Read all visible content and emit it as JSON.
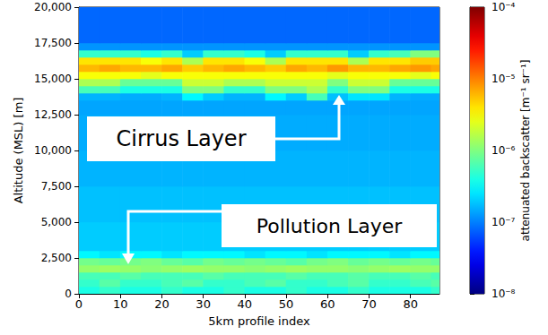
{
  "chart_data": {
    "type": "heatmap",
    "xlabel": "5km profile index",
    "ylabel": "Altitude (MSL) [m]",
    "xlim": [
      0,
      87
    ],
    "xticks": [
      0,
      10,
      20,
      30,
      40,
      50,
      60,
      70,
      80
    ],
    "ylim": [
      0,
      20000
    ],
    "yticks": [
      0,
      2500,
      5000,
      7500,
      10000,
      12500,
      15000,
      17500,
      20000
    ],
    "grid": false,
    "annotations": [
      "Cirrus Layer",
      "Pollution Layer"
    ],
    "x_bins": [
      0,
      5,
      10,
      15,
      20,
      25,
      30,
      35,
      40,
      45,
      50,
      55,
      60,
      65,
      70,
      75,
      80,
      85,
      87
    ],
    "y_bins": [
      0,
      500,
      1000,
      1500,
      2000,
      2500,
      3000,
      5000,
      7500,
      10000,
      12500,
      13500,
      14000,
      14500,
      15000,
      15500,
      16000,
      16500,
      17000,
      17500,
      20000
    ],
    "cells": [
      [
        4e-07,
        5e-07,
        4e-07,
        4e-07,
        5e-07,
        4e-07,
        4e-07,
        5e-07,
        4e-07,
        4e-07,
        5e-07,
        4e-07,
        4e-07,
        5e-07,
        4e-07,
        4e-07,
        4e-07,
        5e-07
      ],
      [
        5e-07,
        7e-07,
        5e-07,
        5e-07,
        6e-07,
        7e-07,
        5e-07,
        5e-07,
        6e-07,
        7e-07,
        5e-07,
        5e-07,
        6e-07,
        7e-07,
        5e-07,
        5e-07,
        6e-07,
        7e-07
      ],
      [
        6e-07,
        6e-07,
        7e-07,
        6e-07,
        6e-07,
        6e-07,
        7e-07,
        6e-07,
        6e-07,
        6e-07,
        7e-07,
        6e-07,
        6e-07,
        7e-07,
        6e-07,
        6e-07,
        7e-07,
        6e-07
      ],
      [
        1.2e-06,
        1.3e-06,
        1.2e-06,
        1.1e-06,
        1.2e-06,
        1.3e-06,
        1.2e-06,
        1.2e-06,
        1.1e-06,
        1.2e-06,
        1.3e-06,
        1.2e-06,
        1.2e-06,
        1.1e-06,
        1.2e-06,
        1.3e-06,
        1.2e-06,
        1.2e-06
      ],
      [
        9e-07,
        8e-07,
        9e-07,
        1e-06,
        8e-07,
        7e-07,
        9e-07,
        8e-07,
        9e-07,
        8e-07,
        7e-07,
        9e-07,
        1e-06,
        8e-07,
        9e-07,
        8e-07,
        9e-07,
        8e-07
      ],
      [
        3e-07,
        2.5e-07,
        3e-07,
        3e-07,
        2.5e-07,
        3e-07,
        3e-07,
        3e-07,
        2.5e-07,
        3e-07,
        3e-07,
        2.5e-07,
        3e-07,
        3e-07,
        3e-07,
        2.5e-07,
        3e-07,
        3e-07
      ],
      [
        2e-07,
        2e-07,
        2e-07,
        2e-07,
        2e-07,
        2e-07,
        2e-07,
        2e-07,
        2e-07,
        2e-07,
        2e-07,
        2e-07,
        2e-07,
        2e-07,
        2e-07,
        2e-07,
        2e-07,
        2e-07
      ],
      [
        1.8e-07,
        1.8e-07,
        1.8e-07,
        1.8e-07,
        1.8e-07,
        1.8e-07,
        1.8e-07,
        1.8e-07,
        1.8e-07,
        1.8e-07,
        1.8e-07,
        1.8e-07,
        1.8e-07,
        1.8e-07,
        1.8e-07,
        1.8e-07,
        1.8e-07,
        1.8e-07
      ],
      [
        1.6e-07,
        1.6e-07,
        1.6e-07,
        1.6e-07,
        1.6e-07,
        1.6e-07,
        1.6e-07,
        1.6e-07,
        1.6e-07,
        1.6e-07,
        1.6e-07,
        1.6e-07,
        1.6e-07,
        1.6e-07,
        1.6e-07,
        1.6e-07,
        1.6e-07,
        1.6e-07
      ],
      [
        1.5e-07,
        1.5e-07,
        1.5e-07,
        1.5e-07,
        1.5e-07,
        1.5e-07,
        1.5e-07,
        1.5e-07,
        1.5e-07,
        1.5e-07,
        1.5e-07,
        1.5e-07,
        1.5e-07,
        1.5e-07,
        1.5e-07,
        1.5e-07,
        1.5e-07,
        1.5e-07
      ],
      [
        1.4e-07,
        1.4e-07,
        1.4e-07,
        1.4e-07,
        1.4e-07,
        1.4e-07,
        1.4e-07,
        1.4e-07,
        1.4e-07,
        1.4e-07,
        1.4e-07,
        1.4e-07,
        1.4e-07,
        1.4e-07,
        1.4e-07,
        1.4e-07,
        1.4e-07,
        1.4e-07
      ],
      [
        1.6e-07,
        1.6e-07,
        1.5e-07,
        1.5e-07,
        1.6e-07,
        3e-07,
        2e-07,
        1.6e-07,
        1.6e-07,
        3e-07,
        2e-07,
        6e-07,
        1.8e-07,
        2.5e-07,
        2.5e-07,
        1.6e-07,
        1.5e-07,
        1.5e-07
      ],
      [
        6e-07,
        6e-07,
        4e-07,
        4e-07,
        4e-07,
        1e-06,
        1e-06,
        5e-07,
        5e-07,
        1e-06,
        1e-06,
        1.5e-06,
        5e-07,
        1e-06,
        1e-06,
        4e-07,
        4e-07,
        4e-07
      ],
      [
        1.5e-06,
        1.5e-06,
        8e-07,
        8e-07,
        8e-07,
        2e-06,
        2e-06,
        1.5e-06,
        1.5e-06,
        2e-06,
        2e-06,
        2e-06,
        1e-06,
        2e-06,
        2e-06,
        8e-07,
        8e-07,
        8e-07
      ],
      [
        3e-06,
        3e-06,
        3e-06,
        2.5e-06,
        3e-06,
        3e-06,
        3e-06,
        3e-06,
        3e-06,
        3e-06,
        3e-06,
        3e-06,
        2.5e-06,
        3e-06,
        3e-06,
        3e-06,
        2.5e-06,
        3e-06
      ],
      [
        6e-06,
        7e-06,
        6e-06,
        6e-06,
        7e-06,
        5e-06,
        6e-06,
        7e-06,
        6e-06,
        5e-06,
        7e-06,
        6e-06,
        8e-06,
        6e-06,
        6e-06,
        7e-06,
        8e-06,
        7e-06
      ],
      [
        4e-06,
        4e-06,
        4e-06,
        3e-06,
        4e-06,
        1.5e-06,
        4e-06,
        4e-06,
        3e-06,
        1.5e-06,
        4e-06,
        4e-06,
        4e-06,
        1.5e-06,
        4e-06,
        4e-06,
        5e-06,
        5e-06
      ],
      [
        5e-07,
        5e-07,
        5e-07,
        4e-07,
        5e-07,
        2e-07,
        5e-07,
        5e-07,
        4e-07,
        2e-07,
        5e-07,
        5e-07,
        5e-07,
        2e-07,
        5e-07,
        6e-07,
        1e-06,
        1e-06
      ],
      [
        1.2e-07,
        1.2e-07,
        1.2e-07,
        1.2e-07,
        1.2e-07,
        1.2e-07,
        1.2e-07,
        1.2e-07,
        1.2e-07,
        1.2e-07,
        1.2e-07,
        1.2e-07,
        1.2e-07,
        1.2e-07,
        1.2e-07,
        1.2e-07,
        1.2e-07,
        1.2e-07
      ],
      [
        8e-08,
        8e-08,
        8e-08,
        8e-08,
        8e-08,
        8e-08,
        8e-08,
        8e-08,
        8e-08,
        8e-08,
        8e-08,
        8e-08,
        8e-08,
        8e-08,
        8e-08,
        8e-08,
        8e-08,
        8e-08
      ]
    ],
    "colorbar": {
      "label": "attenuated backscatter [m⁻¹ sr⁻¹]",
      "range": [
        1e-08,
        0.0001
      ],
      "ticks": [
        {
          "value": 1e-08,
          "label": "10⁻⁸"
        },
        {
          "value": 1e-07,
          "label": "10⁻⁷"
        },
        {
          "value": 1e-06,
          "label": "10⁻⁶"
        },
        {
          "value": 1e-05,
          "label": "10⁻⁵"
        },
        {
          "value": 0.0001,
          "label": "10⁻⁴"
        }
      ]
    }
  }
}
